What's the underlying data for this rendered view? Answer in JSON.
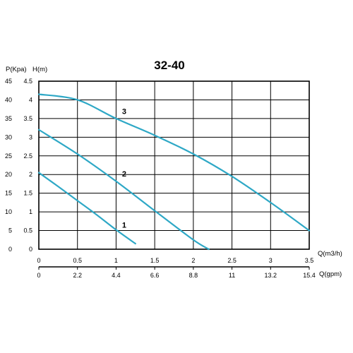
{
  "chart_data": {
    "type": "line",
    "title": "32-40",
    "left_axis_title": "P(Kpa)",
    "right_axis_title": "H(m)",
    "x_primary_label": "Q(m3/h)",
    "x_secondary_label": "Q(gpm)",
    "x_primary_ticks": [
      "0",
      "0.5",
      "1",
      "1.5",
      "2",
      "2.5",
      "3",
      "3.5"
    ],
    "x_secondary_ticks": [
      "0",
      "2.2",
      "4.4",
      "6.6",
      "8.8",
      "11",
      "13.2",
      "15.4"
    ],
    "y_p_ticks": [
      "0",
      "5",
      "10",
      "15",
      "20",
      "25",
      "30",
      "35",
      "40",
      "45"
    ],
    "y_h_ticks": [
      "0",
      "0.5",
      "1",
      "1.5",
      "2",
      "2.5",
      "3",
      "3.5",
      "4",
      "4.5"
    ],
    "xlim": [
      0,
      3.5
    ],
    "ylim": [
      0,
      4.5
    ],
    "grid": true,
    "line_color": "#2ea8c6",
    "series": [
      {
        "name": "1",
        "x": [
          0,
          0.25,
          0.5,
          0.75,
          1.0,
          1.25
        ],
        "y": [
          2.05,
          1.68,
          1.3,
          0.92,
          0.52,
          0.15
        ]
      },
      {
        "name": "2",
        "x": [
          0,
          0.5,
          1.0,
          1.5,
          2.0,
          2.2
        ],
        "y": [
          3.2,
          2.55,
          1.82,
          1.03,
          0.25,
          0.0
        ]
      },
      {
        "name": "3",
        "x": [
          0,
          0.5,
          1.0,
          1.5,
          2.0,
          2.5,
          3.0,
          3.5
        ],
        "y": [
          4.15,
          4.0,
          3.5,
          3.05,
          2.55,
          1.95,
          1.25,
          0.5
        ]
      }
    ]
  }
}
